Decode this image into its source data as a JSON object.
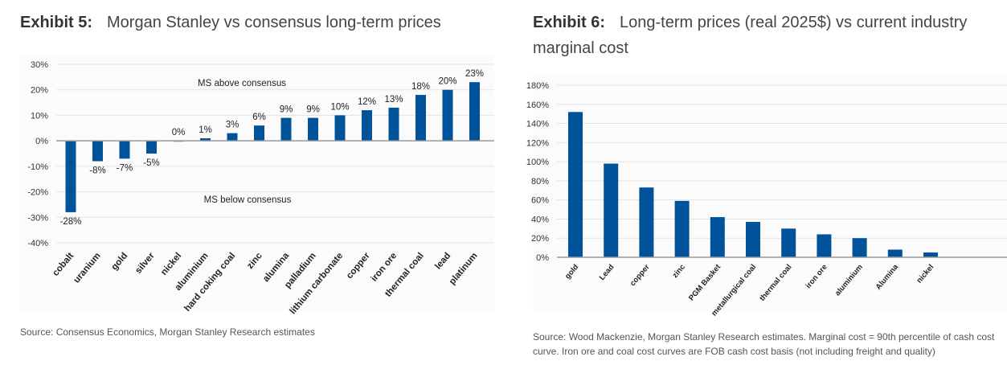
{
  "chart_data": [
    {
      "type": "bar",
      "exhibit": "Exhibit 5:",
      "title": "Morgan Stanley vs consensus long-term prices",
      "categories": [
        "cobalt",
        "uranium",
        "gold",
        "silver",
        "nickel",
        "aluminium",
        "hard coking coal",
        "zinc",
        "alumina",
        "palladium",
        "lithium carbonate",
        "copper",
        "iron ore",
        "thermal coal",
        "lead",
        "platinum"
      ],
      "values": [
        -28,
        -8,
        -7,
        -5,
        0,
        1,
        3,
        6,
        9,
        9,
        10,
        12,
        13,
        18,
        20,
        23
      ],
      "data_labels": [
        "-28%",
        "-8%",
        "-7%",
        "-5%",
        "0%",
        "1%",
        "3%",
        "6%",
        "9%",
        "9%",
        "10%",
        "12%",
        "13%",
        "18%",
        "20%",
        "23%"
      ],
      "yticks": [
        "30%",
        "20%",
        "10%",
        "0%",
        "-10%",
        "-20%",
        "-30%",
        "-40%"
      ],
      "ylim": [
        -40,
        30
      ],
      "annotations": [
        "MS above consensus",
        "MS below consensus"
      ],
      "grid": true,
      "bar_color": "#00539b",
      "source": "Source: Consensus Economics, Morgan Stanley Research estimates"
    },
    {
      "type": "bar",
      "exhibit": "Exhibit 6:",
      "title": "Long-term prices (real 2025$) vs current industry marginal cost",
      "categories": [
        "gold",
        "Lead",
        "copper",
        "zinc",
        "PGM Basket",
        "metallurgical coal",
        "thermal coal",
        "iron ore",
        "aluminium",
        "Alumina",
        "nickel"
      ],
      "values": [
        152,
        98,
        73,
        59,
        42,
        37,
        30,
        24,
        20,
        8,
        5
      ],
      "yticks": [
        "180%",
        "160%",
        "140%",
        "120%",
        "100%",
        "80%",
        "60%",
        "40%",
        "20%",
        "0%"
      ],
      "ylim": [
        0,
        180
      ],
      "grid": true,
      "bar_color": "#00539b",
      "source": "Source: Wood Mackenzie, Morgan Stanley Research estimates. Marginal cost = 90th percentile of cash cost curve. Iron ore and coal cost curves are FOB cash cost basis (not including freight and quality)"
    }
  ]
}
